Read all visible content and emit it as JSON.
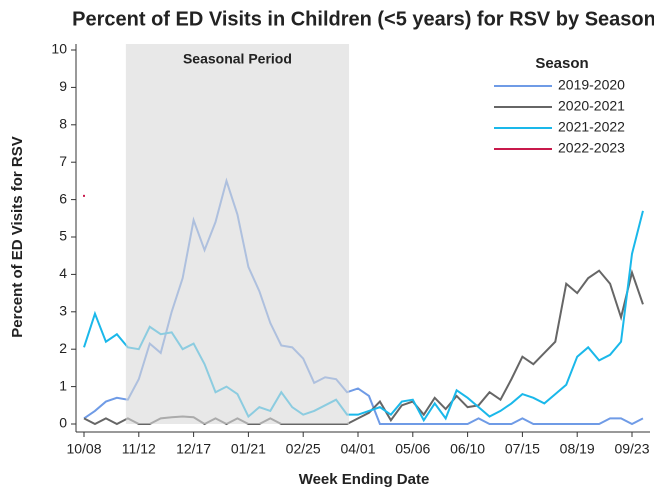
{
  "chart_data": {
    "type": "line",
    "title": "Percent of ED Visits in Children (<5 years) for RSV by Season",
    "x_label": "Week Ending Date",
    "y_label": "Percent of ED Visits for RSV",
    "categories": [
      "10/08",
      null,
      null,
      null,
      null,
      "11/12",
      null,
      null,
      null,
      null,
      "12/17",
      null,
      null,
      null,
      null,
      "01/21",
      null,
      null,
      null,
      null,
      "02/25",
      null,
      null,
      null,
      null,
      "04/01",
      null,
      null,
      null,
      null,
      "05/06",
      null,
      null,
      null,
      null,
      "06/10",
      null,
      null,
      null,
      null,
      "07/15",
      null,
      null,
      null,
      null,
      "08/19",
      null,
      null,
      null,
      null,
      "09/23",
      null
    ],
    "shaded_period": {
      "label": "Seasonal Period",
      "from": 4,
      "to": 24
    },
    "legend_title": "Season",
    "legend_position": "upper right",
    "series": [
      {
        "name": "2019-2020",
        "color": "#6f9be6",
        "values": [
          0.15,
          0.35,
          0.6,
          0.7,
          0.65,
          1.2,
          2.15,
          1.9,
          3.0,
          3.9,
          5.45,
          4.65,
          5.4,
          6.5,
          5.6,
          4.2,
          3.55,
          2.7,
          2.1,
          2.05,
          1.75,
          1.1,
          1.25,
          1.2,
          0.85,
          0.95,
          0.75,
          0,
          0,
          0,
          0,
          0,
          0,
          0,
          0,
          0,
          0.15,
          0,
          0,
          0,
          0.15,
          0,
          0,
          0,
          0,
          0,
          0,
          0,
          0.15,
          0.15,
          0,
          0.15
        ]
      },
      {
        "name": "2020-2021",
        "color": "#666666",
        "values": [
          0.15,
          0,
          0.15,
          0,
          0.15,
          0,
          0,
          0.15,
          0.18,
          0.2,
          0.18,
          0,
          0.15,
          0,
          0.15,
          0,
          0,
          0.15,
          0,
          0,
          0,
          0,
          0,
          0,
          0,
          0.15,
          0.3,
          0.6,
          0.1,
          0.5,
          0.6,
          0.25,
          0.7,
          0.4,
          0.75,
          0.45,
          0.5,
          0.85,
          0.65,
          1.2,
          1.8,
          1.6,
          1.9,
          2.2,
          3.75,
          3.5,
          3.9,
          4.1,
          3.75,
          2.85,
          4.05,
          3.2
        ]
      },
      {
        "name": "2021-2022",
        "color": "#1ab8ea",
        "values": [
          2.05,
          2.95,
          2.2,
          2.4,
          2.05,
          2.0,
          2.6,
          2.4,
          2.45,
          2.0,
          2.15,
          1.6,
          0.85,
          1.0,
          0.8,
          0.2,
          0.45,
          0.35,
          0.85,
          0.45,
          0.25,
          0.35,
          0.5,
          0.65,
          0.25,
          0.25,
          0.35,
          0.45,
          0.25,
          0.6,
          0.65,
          0.1,
          0.55,
          0.15,
          0.9,
          0.7,
          0.45,
          0.2,
          0.35,
          0.55,
          0.8,
          0.7,
          0.55,
          0.8,
          1.05,
          1.8,
          2.05,
          1.7,
          1.85,
          2.2,
          4.55,
          5.7
        ]
      },
      {
        "name": "2022-2023",
        "color": "#c8194b",
        "values": [
          6.1,
          null,
          null,
          null,
          null,
          null,
          null,
          null,
          null,
          null,
          null,
          null,
          null,
          null,
          null,
          null,
          null,
          null,
          null,
          null,
          null,
          null,
          null,
          null,
          null,
          null,
          null,
          null,
          null,
          null,
          null,
          null,
          null,
          null,
          null,
          null,
          null,
          null,
          null,
          null,
          null,
          null,
          null,
          null,
          null,
          null,
          null,
          null,
          null,
          null,
          null,
          null
        ]
      }
    ],
    "ylim": [
      0,
      10
    ],
    "yticks": [
      0,
      1,
      2,
      3,
      4,
      5,
      6,
      7,
      8,
      9,
      10
    ]
  }
}
